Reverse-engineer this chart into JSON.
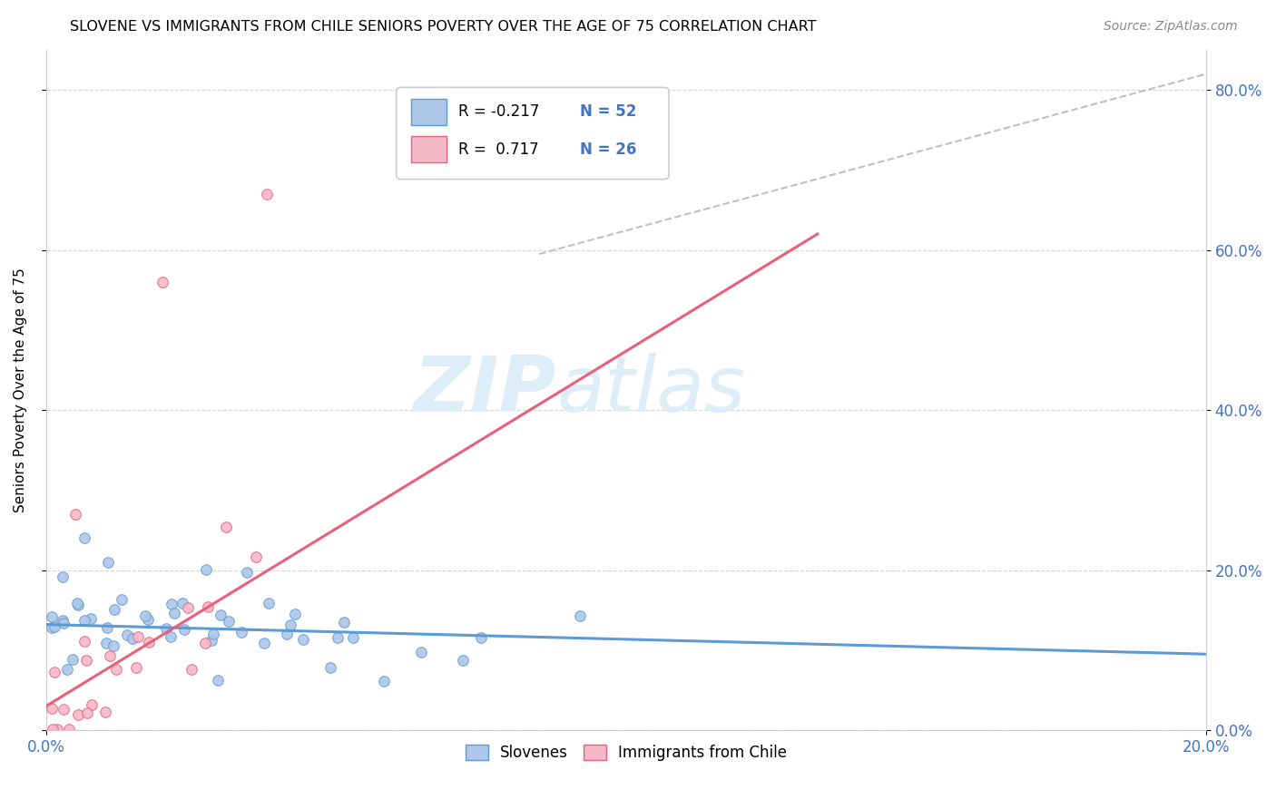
{
  "title": "SLOVENE VS IMMIGRANTS FROM CHILE SENIORS POVERTY OVER THE AGE OF 75 CORRELATION CHART",
  "source": "Source: ZipAtlas.com",
  "ylabel": "Seniors Poverty Over the Age of 75",
  "slovene_color": "#aec6e8",
  "slovene_edge_color": "#5b9bd5",
  "chile_color": "#f4b8c8",
  "chile_edge_color": "#e8607a",
  "slovene_line_color": "#5b9bd5",
  "chile_line_color": "#e8607a",
  "dash_line_color": "#c0c0c0",
  "watermark_color": "#ddeef8",
  "text_color": "#4472c4",
  "legend_r_color": "black",
  "legend_n_color": "#4472c4",
  "xlim": [
    0.0,
    0.2
  ],
  "ylim": [
    0.0,
    0.85
  ],
  "slovene_trend": [
    0.0,
    0.2,
    0.132,
    0.095
  ],
  "chile_trend": [
    0.0,
    0.133,
    0.03,
    0.62
  ],
  "dash_trend": [
    0.085,
    0.2,
    0.595,
    0.82
  ],
  "slovene_seed": 10,
  "chile_seed": 77,
  "n_slovene": 52,
  "n_chile": 26
}
